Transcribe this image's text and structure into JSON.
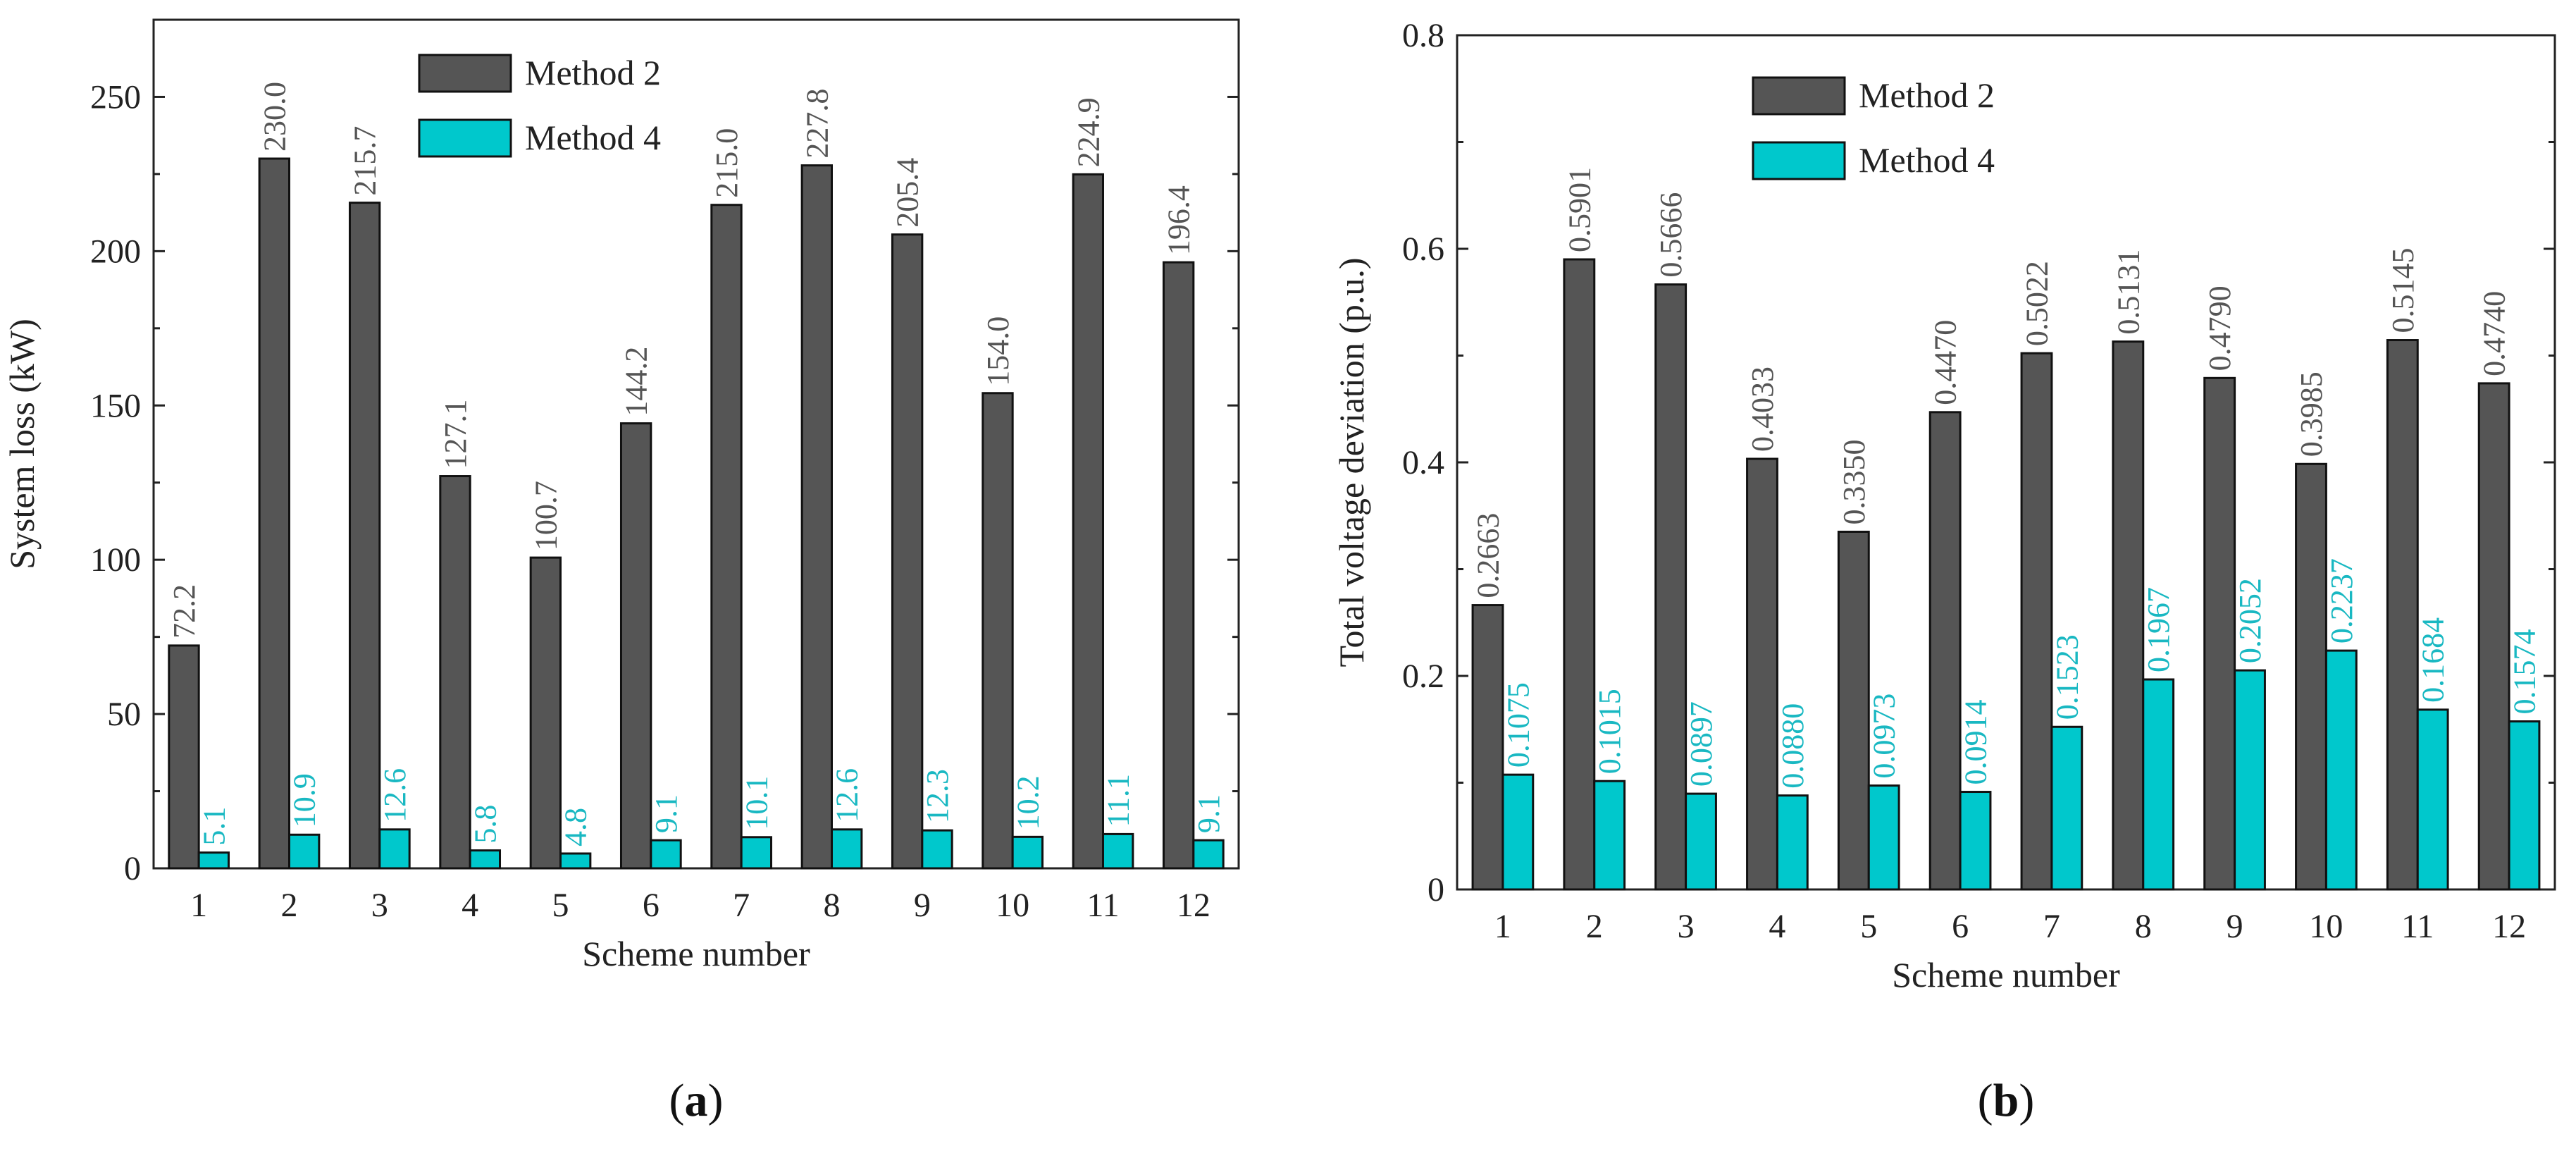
{
  "colors": {
    "method2": "#555555",
    "method4": "#00c8cc",
    "label2": "#555555",
    "label4": "#19b8c2"
  },
  "chart_data": [
    {
      "type": "bar",
      "panel_label": "(a)",
      "panel_letter": "a",
      "xlabel": "Scheme number",
      "ylabel": "System loss (kW)",
      "ylim": [
        0,
        275
      ],
      "yticks": [
        0,
        50,
        100,
        150,
        200,
        250
      ],
      "ytick_labels": [
        "0",
        "50",
        "100",
        "150",
        "200",
        "250"
      ],
      "grid": false,
      "legend_position": "top-center",
      "categories": [
        "1",
        "2",
        "3",
        "4",
        "5",
        "6",
        "7",
        "8",
        "9",
        "10",
        "11",
        "12"
      ],
      "series": [
        {
          "name": "Method 2",
          "values": [
            72.2,
            230.0,
            215.7,
            127.1,
            100.7,
            144.2,
            215.0,
            227.8,
            205.4,
            154.0,
            224.9,
            196.4
          ],
          "labels": [
            "72.2",
            "230.0",
            "215.7",
            "127.1",
            "100.7",
            "144.2",
            "215.0",
            "227.8",
            "205.4",
            "154.0",
            "224.9",
            "196.4"
          ]
        },
        {
          "name": "Method 4",
          "values": [
            5.1,
            10.9,
            12.6,
            5.8,
            4.8,
            9.1,
            10.1,
            12.6,
            12.3,
            10.2,
            11.1,
            9.1
          ],
          "labels": [
            "5.1",
            "10.9",
            "12.6",
            "5.8",
            "4.8",
            "9.1",
            "10.1",
            "12.6",
            "12.3",
            "10.2",
            "11.1",
            "9.1"
          ]
        }
      ]
    },
    {
      "type": "bar",
      "panel_label": "(b)",
      "panel_letter": "b",
      "xlabel": "Scheme number",
      "ylabel": "Total voltage deviation (p.u.)",
      "ylim": [
        0,
        0.8
      ],
      "yticks": [
        0,
        0.2,
        0.4,
        0.6,
        0.8
      ],
      "ytick_labels": [
        "0",
        "0.2",
        "0.4",
        "0.6",
        "0.8"
      ],
      "grid": false,
      "legend_position": "top-left",
      "categories": [
        "1",
        "2",
        "3",
        "4",
        "5",
        "6",
        "7",
        "8",
        "9",
        "10",
        "11",
        "12"
      ],
      "series": [
        {
          "name": "Method 2",
          "values": [
            0.2663,
            0.5901,
            0.5666,
            0.4033,
            0.335,
            0.447,
            0.5022,
            0.5131,
            0.479,
            0.3985,
            0.5145,
            0.474
          ],
          "labels": [
            "0.2663",
            "0.5901",
            "0.5666",
            "0.4033",
            "0.3350",
            "0.4470",
            "0.5022",
            "0.5131",
            "0.4790",
            "0.3985",
            "0.5145",
            "0.4740"
          ]
        },
        {
          "name": "Method 4",
          "values": [
            0.1075,
            0.1015,
            0.0897,
            0.088,
            0.0973,
            0.0914,
            0.1523,
            0.1967,
            0.2052,
            0.2237,
            0.1684,
            0.1574
          ],
          "labels": [
            "0.1075",
            "0.1015",
            "0.0897",
            "0.0880",
            "0.0973",
            "0.0914",
            "0.1523",
            "0.1967",
            "0.2052",
            "0.2237",
            "0.1684",
            "0.1574"
          ]
        }
      ]
    }
  ]
}
